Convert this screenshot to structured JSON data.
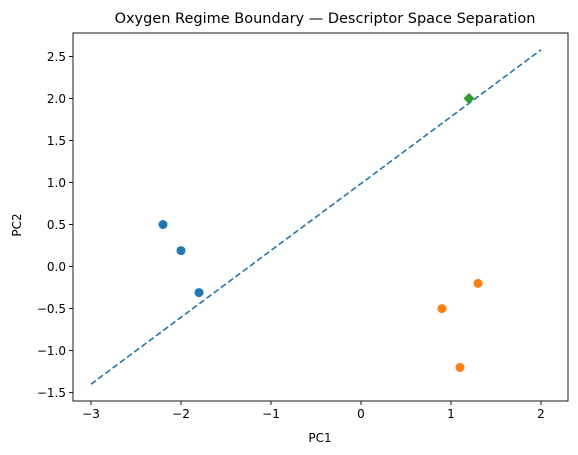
{
  "chart_data": {
    "type": "scatter",
    "title": "Oxygen Regime Boundary — Descriptor Space Separation",
    "xlabel": "PC1",
    "ylabel": "PC2",
    "xlim": [
      -3.2,
      2.3
    ],
    "ylim": [
      -1.6,
      2.78
    ],
    "xticks": [
      -3,
      -2,
      -1,
      0,
      1,
      2
    ],
    "xtick_labels": [
      "−3",
      "−2",
      "−1",
      "0",
      "1",
      "2"
    ],
    "yticks": [
      -1.5,
      -1.0,
      -0.5,
      0.0,
      0.5,
      1.0,
      1.5,
      2.0,
      2.5
    ],
    "ytick_labels": [
      "−1.5",
      "−1.0",
      "−0.5",
      "0.0",
      "0.5",
      "1.0",
      "1.5",
      "2.0",
      "2.5"
    ],
    "grid": false,
    "series": [
      {
        "color": "#1f77b4",
        "marker": "circle",
        "points": [
          [
            -2.2,
            0.5
          ],
          [
            -2.0,
            0.19
          ],
          [
            -1.8,
            -0.31
          ]
        ]
      },
      {
        "color": "#ff7f0e",
        "marker": "circle",
        "points": [
          [
            0.9,
            -0.5
          ],
          [
            1.3,
            -0.2
          ],
          [
            1.1,
            -1.2
          ]
        ]
      },
      {
        "color": "#2ca02c",
        "marker": "diamond",
        "points": [
          [
            1.2,
            2.0
          ]
        ]
      }
    ],
    "boundary_line": {
      "color": "#1f77b4",
      "style": "dashed",
      "points": [
        [
          -3.0,
          -1.4
        ],
        [
          2.0,
          2.58
        ]
      ]
    }
  }
}
